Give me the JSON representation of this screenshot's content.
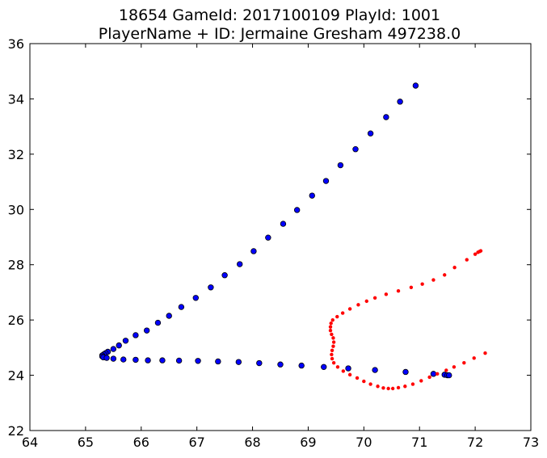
{
  "chart_data": {
    "type": "scatter",
    "title": "18654 GameId: 2017100109 PlayId: 1001",
    "subtitle": "PlayerName + ID: Jermaine Gresham 497238.0",
    "xlabel": "",
    "ylabel": "",
    "xlim": [
      64,
      73
    ],
    "ylim": [
      22,
      36
    ],
    "xticks": [
      "64",
      "65",
      "66",
      "67",
      "68",
      "69",
      "70",
      "71",
      "72",
      "73"
    ],
    "yticks": [
      "22",
      "24",
      "26",
      "28",
      "30",
      "32",
      "34",
      "36"
    ],
    "grid": false,
    "series": [
      {
        "color": "#0000ff",
        "marker": "circle",
        "points": [
          [
            70.93,
            34.48
          ],
          [
            70.65,
            33.9
          ],
          [
            70.4,
            33.34
          ],
          [
            70.12,
            32.75
          ],
          [
            69.85,
            32.18
          ],
          [
            69.58,
            31.6
          ],
          [
            69.32,
            31.03
          ],
          [
            69.07,
            30.5
          ],
          [
            68.8,
            29.98
          ],
          [
            68.55,
            29.48
          ],
          [
            68.28,
            28.98
          ],
          [
            68.02,
            28.49
          ],
          [
            67.77,
            28.02
          ],
          [
            67.5,
            27.62
          ],
          [
            67.25,
            27.18
          ],
          [
            66.98,
            26.8
          ],
          [
            66.72,
            26.47
          ],
          [
            66.5,
            26.15
          ],
          [
            66.3,
            25.9
          ],
          [
            66.1,
            25.62
          ],
          [
            65.9,
            25.45
          ],
          [
            65.72,
            25.25
          ],
          [
            65.6,
            25.08
          ],
          [
            65.5,
            24.95
          ],
          [
            65.4,
            24.85
          ],
          [
            65.36,
            24.8
          ],
          [
            65.33,
            24.76
          ],
          [
            65.3,
            24.72
          ],
          [
            65.3,
            24.68
          ],
          [
            65.32,
            24.65
          ],
          [
            65.38,
            24.63
          ],
          [
            65.5,
            24.6
          ],
          [
            65.68,
            24.57
          ],
          [
            65.9,
            24.56
          ],
          [
            66.12,
            24.54
          ],
          [
            66.38,
            24.54
          ],
          [
            66.68,
            24.53
          ],
          [
            67.02,
            24.52
          ],
          [
            67.38,
            24.5
          ],
          [
            67.75,
            24.48
          ],
          [
            68.12,
            24.44
          ],
          [
            68.5,
            24.39
          ],
          [
            68.88,
            24.35
          ],
          [
            69.28,
            24.3
          ],
          [
            69.72,
            24.25
          ],
          [
            70.2,
            24.19
          ],
          [
            70.75,
            24.12
          ],
          [
            71.25,
            24.05
          ],
          [
            71.45,
            24.02
          ],
          [
            71.5,
            24.0
          ],
          [
            71.53,
            24.0
          ]
        ]
      },
      {
        "color": "#ff0000",
        "marker": "point",
        "points": [
          [
            72.18,
            24.8
          ],
          [
            71.98,
            24.62
          ],
          [
            71.8,
            24.45
          ],
          [
            71.62,
            24.3
          ],
          [
            71.48,
            24.18
          ],
          [
            71.32,
            24.05
          ],
          [
            71.18,
            23.93
          ],
          [
            71.03,
            23.8
          ],
          [
            70.88,
            23.68
          ],
          [
            70.74,
            23.6
          ],
          [
            70.62,
            23.55
          ],
          [
            70.52,
            23.52
          ],
          [
            70.44,
            23.52
          ],
          [
            70.35,
            23.54
          ],
          [
            70.25,
            23.6
          ],
          [
            70.12,
            23.68
          ],
          [
            70.0,
            23.78
          ],
          [
            69.88,
            23.9
          ],
          [
            69.75,
            24.02
          ],
          [
            69.63,
            24.15
          ],
          [
            69.53,
            24.3
          ],
          [
            69.46,
            24.45
          ],
          [
            69.43,
            24.6
          ],
          [
            69.42,
            24.75
          ],
          [
            69.43,
            24.9
          ],
          [
            69.45,
            25.05
          ],
          [
            69.46,
            25.2
          ],
          [
            69.45,
            25.35
          ],
          [
            69.42,
            25.48
          ],
          [
            69.4,
            25.62
          ],
          [
            69.4,
            25.75
          ],
          [
            69.41,
            25.88
          ],
          [
            69.44,
            26.0
          ],
          [
            69.52,
            26.12
          ],
          [
            69.62,
            26.25
          ],
          [
            69.75,
            26.4
          ],
          [
            69.9,
            26.55
          ],
          [
            70.05,
            26.68
          ],
          [
            70.2,
            26.8
          ],
          [
            70.4,
            26.93
          ],
          [
            70.62,
            27.05
          ],
          [
            70.85,
            27.18
          ],
          [
            71.05,
            27.3
          ],
          [
            71.25,
            27.45
          ],
          [
            71.45,
            27.63
          ],
          [
            71.63,
            27.9
          ],
          [
            71.85,
            28.18
          ],
          [
            72.0,
            28.38
          ],
          [
            72.05,
            28.45
          ],
          [
            72.08,
            28.48
          ],
          [
            72.1,
            28.5
          ]
        ]
      }
    ]
  }
}
